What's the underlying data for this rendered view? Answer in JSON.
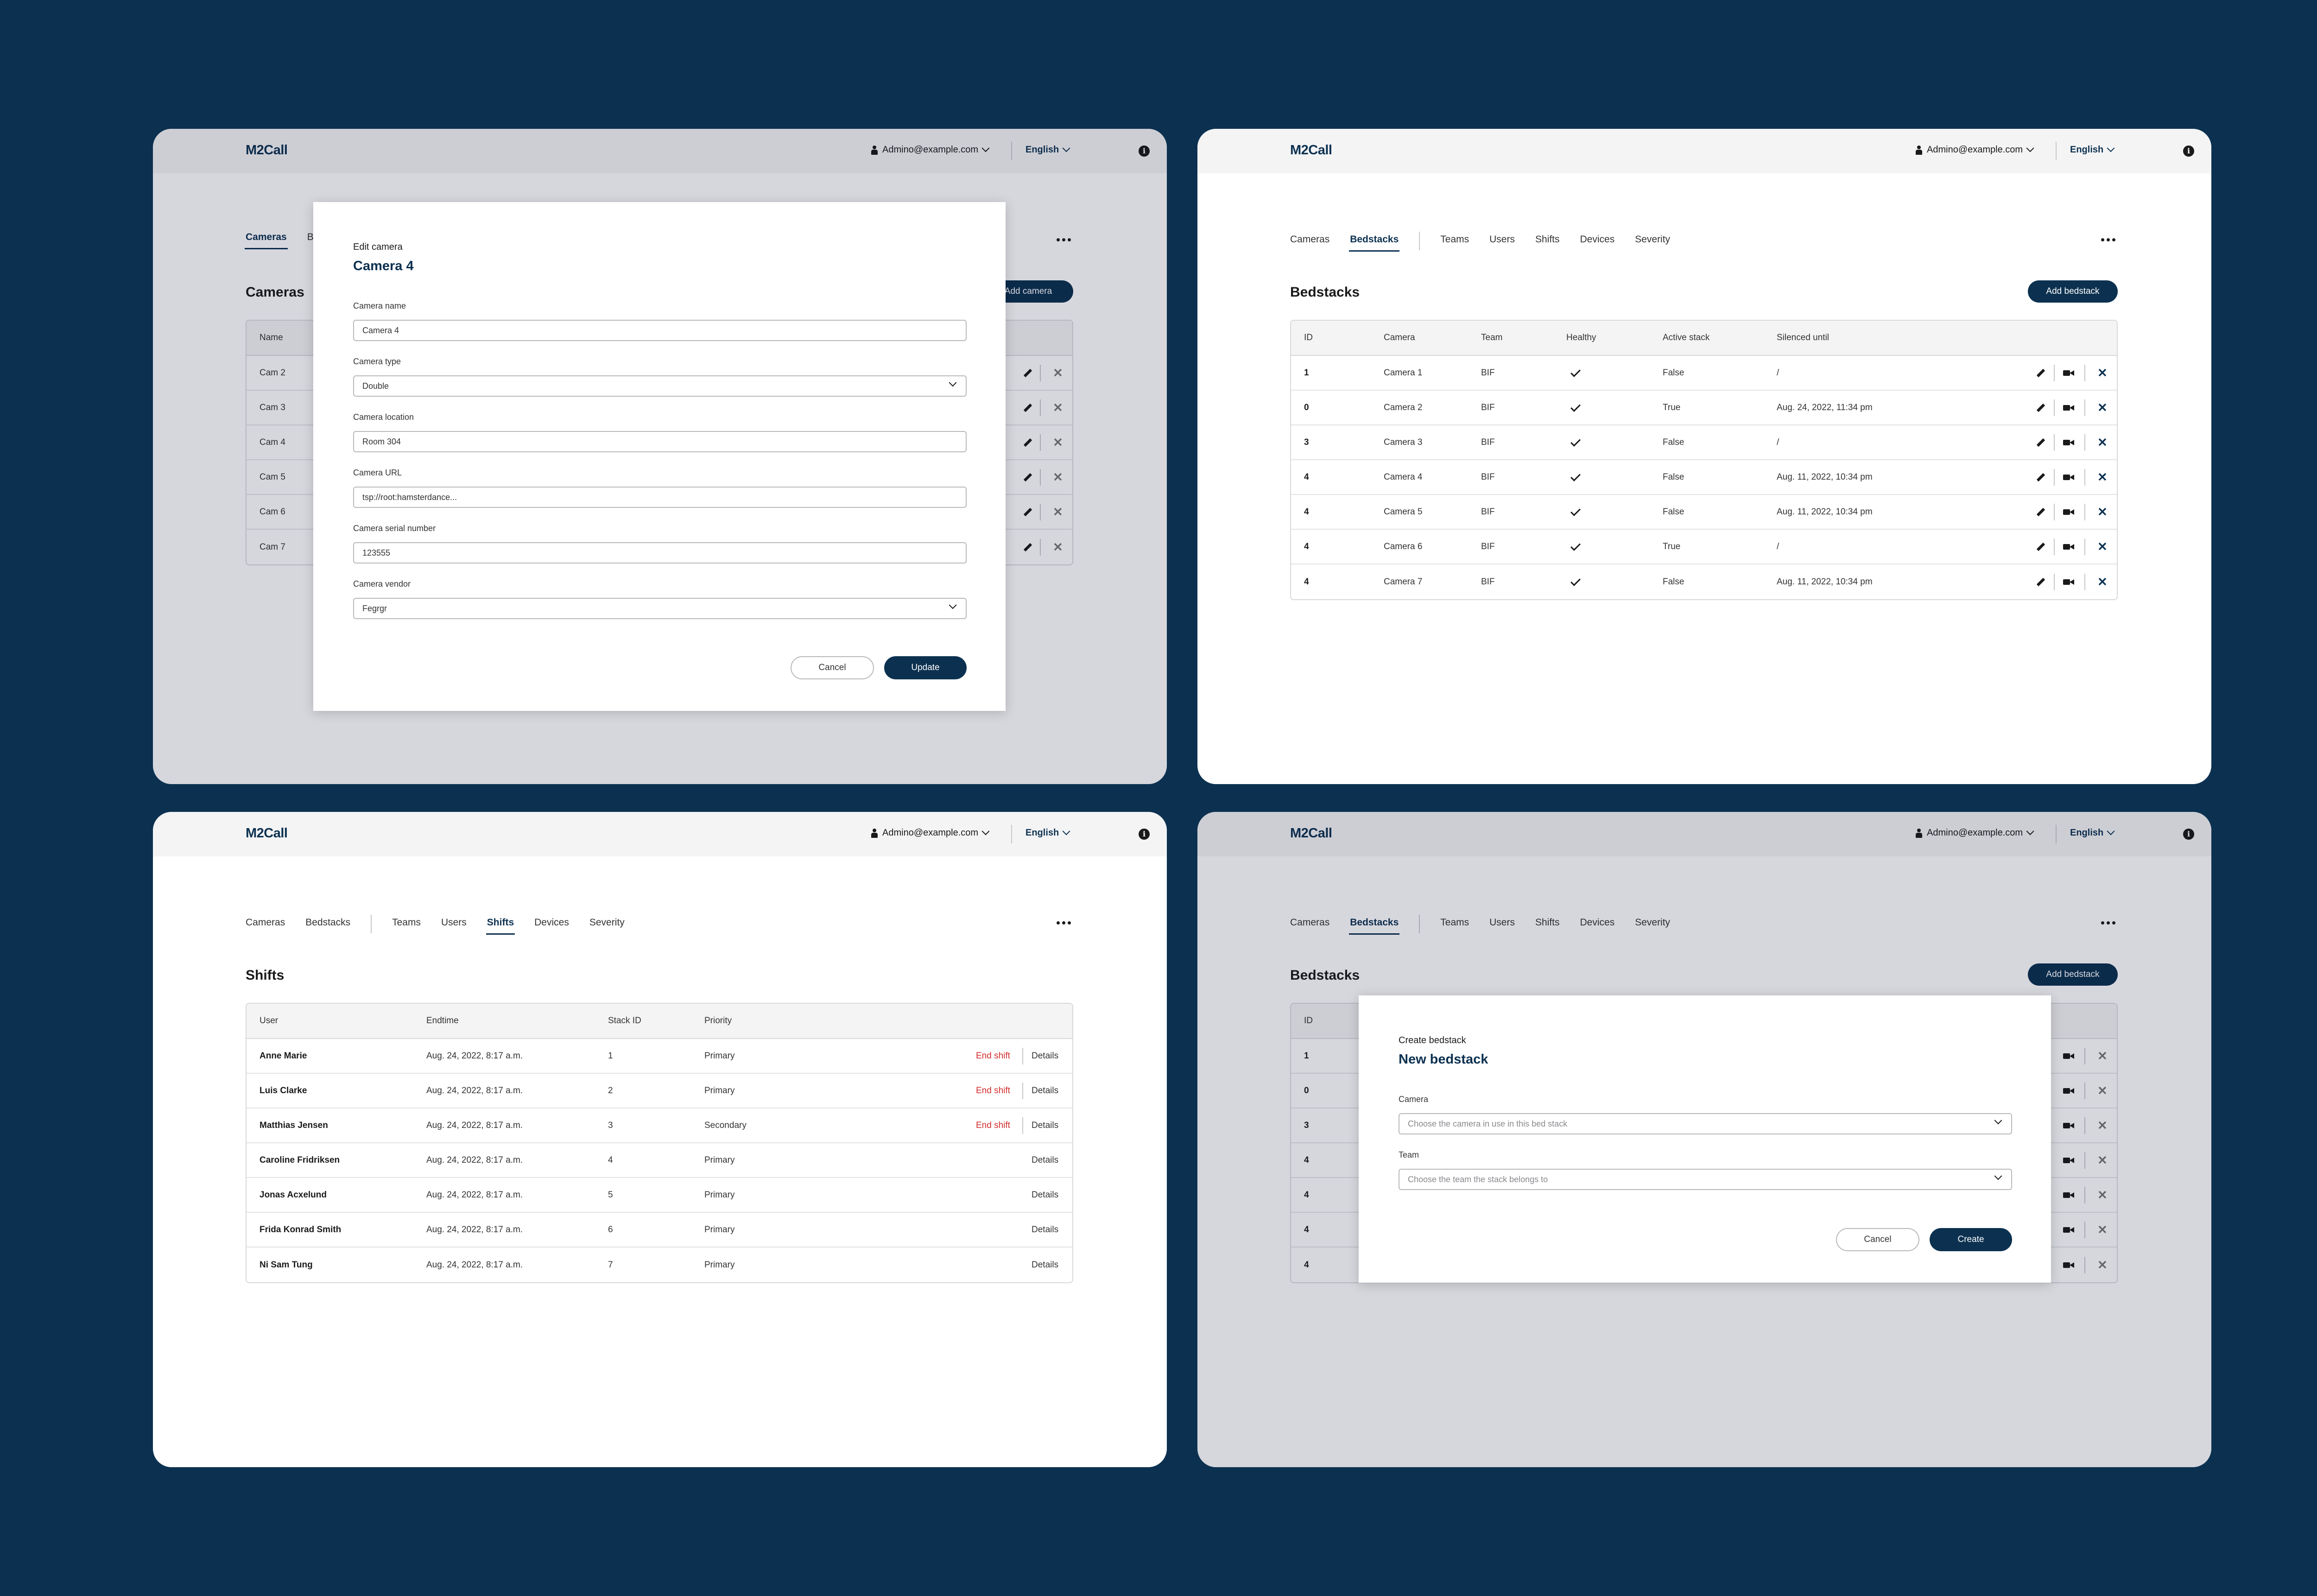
{
  "app_name": "M2Call",
  "account_email": "Admino@example.com",
  "language": "English",
  "info_icon_glyph": "i",
  "more_icon": "more-dots-icon",
  "colors": {
    "background": "#0c3150",
    "accent": "#0c3150",
    "danger": "#d22b2b"
  },
  "panel1": {
    "nav": [
      "Cameras",
      "B"
    ],
    "title": "Cameras",
    "add_label": "Add camera",
    "col_name": "Name",
    "rows": [
      "Cam 2",
      "Cam 3",
      "Cam 4",
      "Cam 5",
      "Cam 6",
      "Cam 7"
    ],
    "modal": {
      "kicker": "Edit camera",
      "title": "Camera 4",
      "fields": [
        {
          "label": "Camera name",
          "value": "Camera 4"
        },
        {
          "label": "Camera type",
          "value": "Double"
        },
        {
          "label": "Camera location",
          "value": "Room 304"
        },
        {
          "label": "Camera URL",
          "value": "tsp://root:hamsterdance..."
        },
        {
          "label": "Camera serial number",
          "value": "123555"
        },
        {
          "label": "Camera vendor",
          "value": "Fegrgr"
        }
      ],
      "cancel": "Cancel",
      "submit": "Update"
    }
  },
  "panel2": {
    "nav": [
      "Cameras",
      "Bedstacks",
      "Teams",
      "Users",
      "Shifts",
      "Devices",
      "Severity"
    ],
    "active_nav": "Bedstacks",
    "title": "Bedstacks",
    "add_label": "Add bedstack",
    "columns": [
      "ID",
      "Camera",
      "Team",
      "Healthy",
      "Active stack",
      "Silenced until"
    ],
    "rows": [
      {
        "id": "1",
        "camera": "Camera 1",
        "team": "BIF",
        "healthy": true,
        "active": "False",
        "silenced": "/"
      },
      {
        "id": "0",
        "camera": "Camera 2",
        "team": "BIF",
        "healthy": true,
        "active": "True",
        "silenced": "Aug. 24, 2022, 11:34 pm"
      },
      {
        "id": "3",
        "camera": "Camera 3",
        "team": "BIF",
        "healthy": true,
        "active": "False",
        "silenced": "/"
      },
      {
        "id": "4",
        "camera": "Camera 4",
        "team": "BIF",
        "healthy": true,
        "active": "False",
        "silenced": "Aug. 11, 2022, 10:34 pm"
      },
      {
        "id": "4",
        "camera": "Camera 5",
        "team": "BIF",
        "healthy": true,
        "active": "False",
        "silenced": "Aug. 11, 2022, 10:34 pm"
      },
      {
        "id": "4",
        "camera": "Camera 6",
        "team": "BIF",
        "healthy": true,
        "active": "True",
        "silenced": "/"
      },
      {
        "id": "4",
        "camera": "Camera 7",
        "team": "BIF",
        "healthy": true,
        "active": "False",
        "silenced": "Aug. 11, 2022, 10:34 pm"
      }
    ]
  },
  "panel3": {
    "nav": [
      "Cameras",
      "Bedstacks",
      "Teams",
      "Users",
      "Shifts",
      "Devices",
      "Severity"
    ],
    "active_nav": "Shifts",
    "title": "Shifts",
    "columns": [
      "User",
      "Endtime",
      "Stack ID",
      "Priority"
    ],
    "end_label": "End shift",
    "details_label": "Details",
    "rows": [
      {
        "user": "Anne Marie",
        "end": "Aug. 24, 2022, 8:17 a.m.",
        "stack": "1",
        "priority": "Primary",
        "can_end": true
      },
      {
        "user": "Luis Clarke",
        "end": "Aug. 24, 2022, 8:17 a.m.",
        "stack": "2",
        "priority": "Primary",
        "can_end": true
      },
      {
        "user": "Matthias Jensen",
        "end": "Aug. 24, 2022, 8:17 a.m.",
        "stack": "3",
        "priority": "Secondary",
        "can_end": true
      },
      {
        "user": "Caroline Fridriksen",
        "end": "Aug. 24, 2022, 8:17 a.m.",
        "stack": "4",
        "priority": "Primary",
        "can_end": false
      },
      {
        "user": "Jonas Acxelund",
        "end": "Aug. 24, 2022, 8:17 a.m.",
        "stack": "5",
        "priority": "Primary",
        "can_end": false
      },
      {
        "user": "Frida Konrad Smith",
        "end": "Aug. 24, 2022, 8:17 a.m.",
        "stack": "6",
        "priority": "Primary",
        "can_end": false
      },
      {
        "user": "Ni Sam Tung",
        "end": "Aug. 24, 2022, 8:17 a.m.",
        "stack": "7",
        "priority": "Primary",
        "can_end": false
      }
    ]
  },
  "panel4": {
    "nav": [
      "Cameras",
      "Bedstacks",
      "Teams",
      "Users",
      "Shifts",
      "Devices",
      "Severity"
    ],
    "active_nav": "Bedstacks",
    "title": "Bedstacks",
    "add_label": "Add bedstack",
    "col_id": "ID",
    "row_ids": [
      "1",
      "0",
      "3",
      "4",
      "4",
      "4",
      "4"
    ],
    "modal": {
      "kicker": "Create bedstack",
      "title": "New bedstack",
      "fields": [
        {
          "label": "Camera",
          "placeholder": "Choose the camera in use in this bed stack"
        },
        {
          "label": "Team",
          "placeholder": "Choose the team the stack belongs to"
        }
      ],
      "cancel": "Cancel",
      "submit": "Create"
    }
  }
}
